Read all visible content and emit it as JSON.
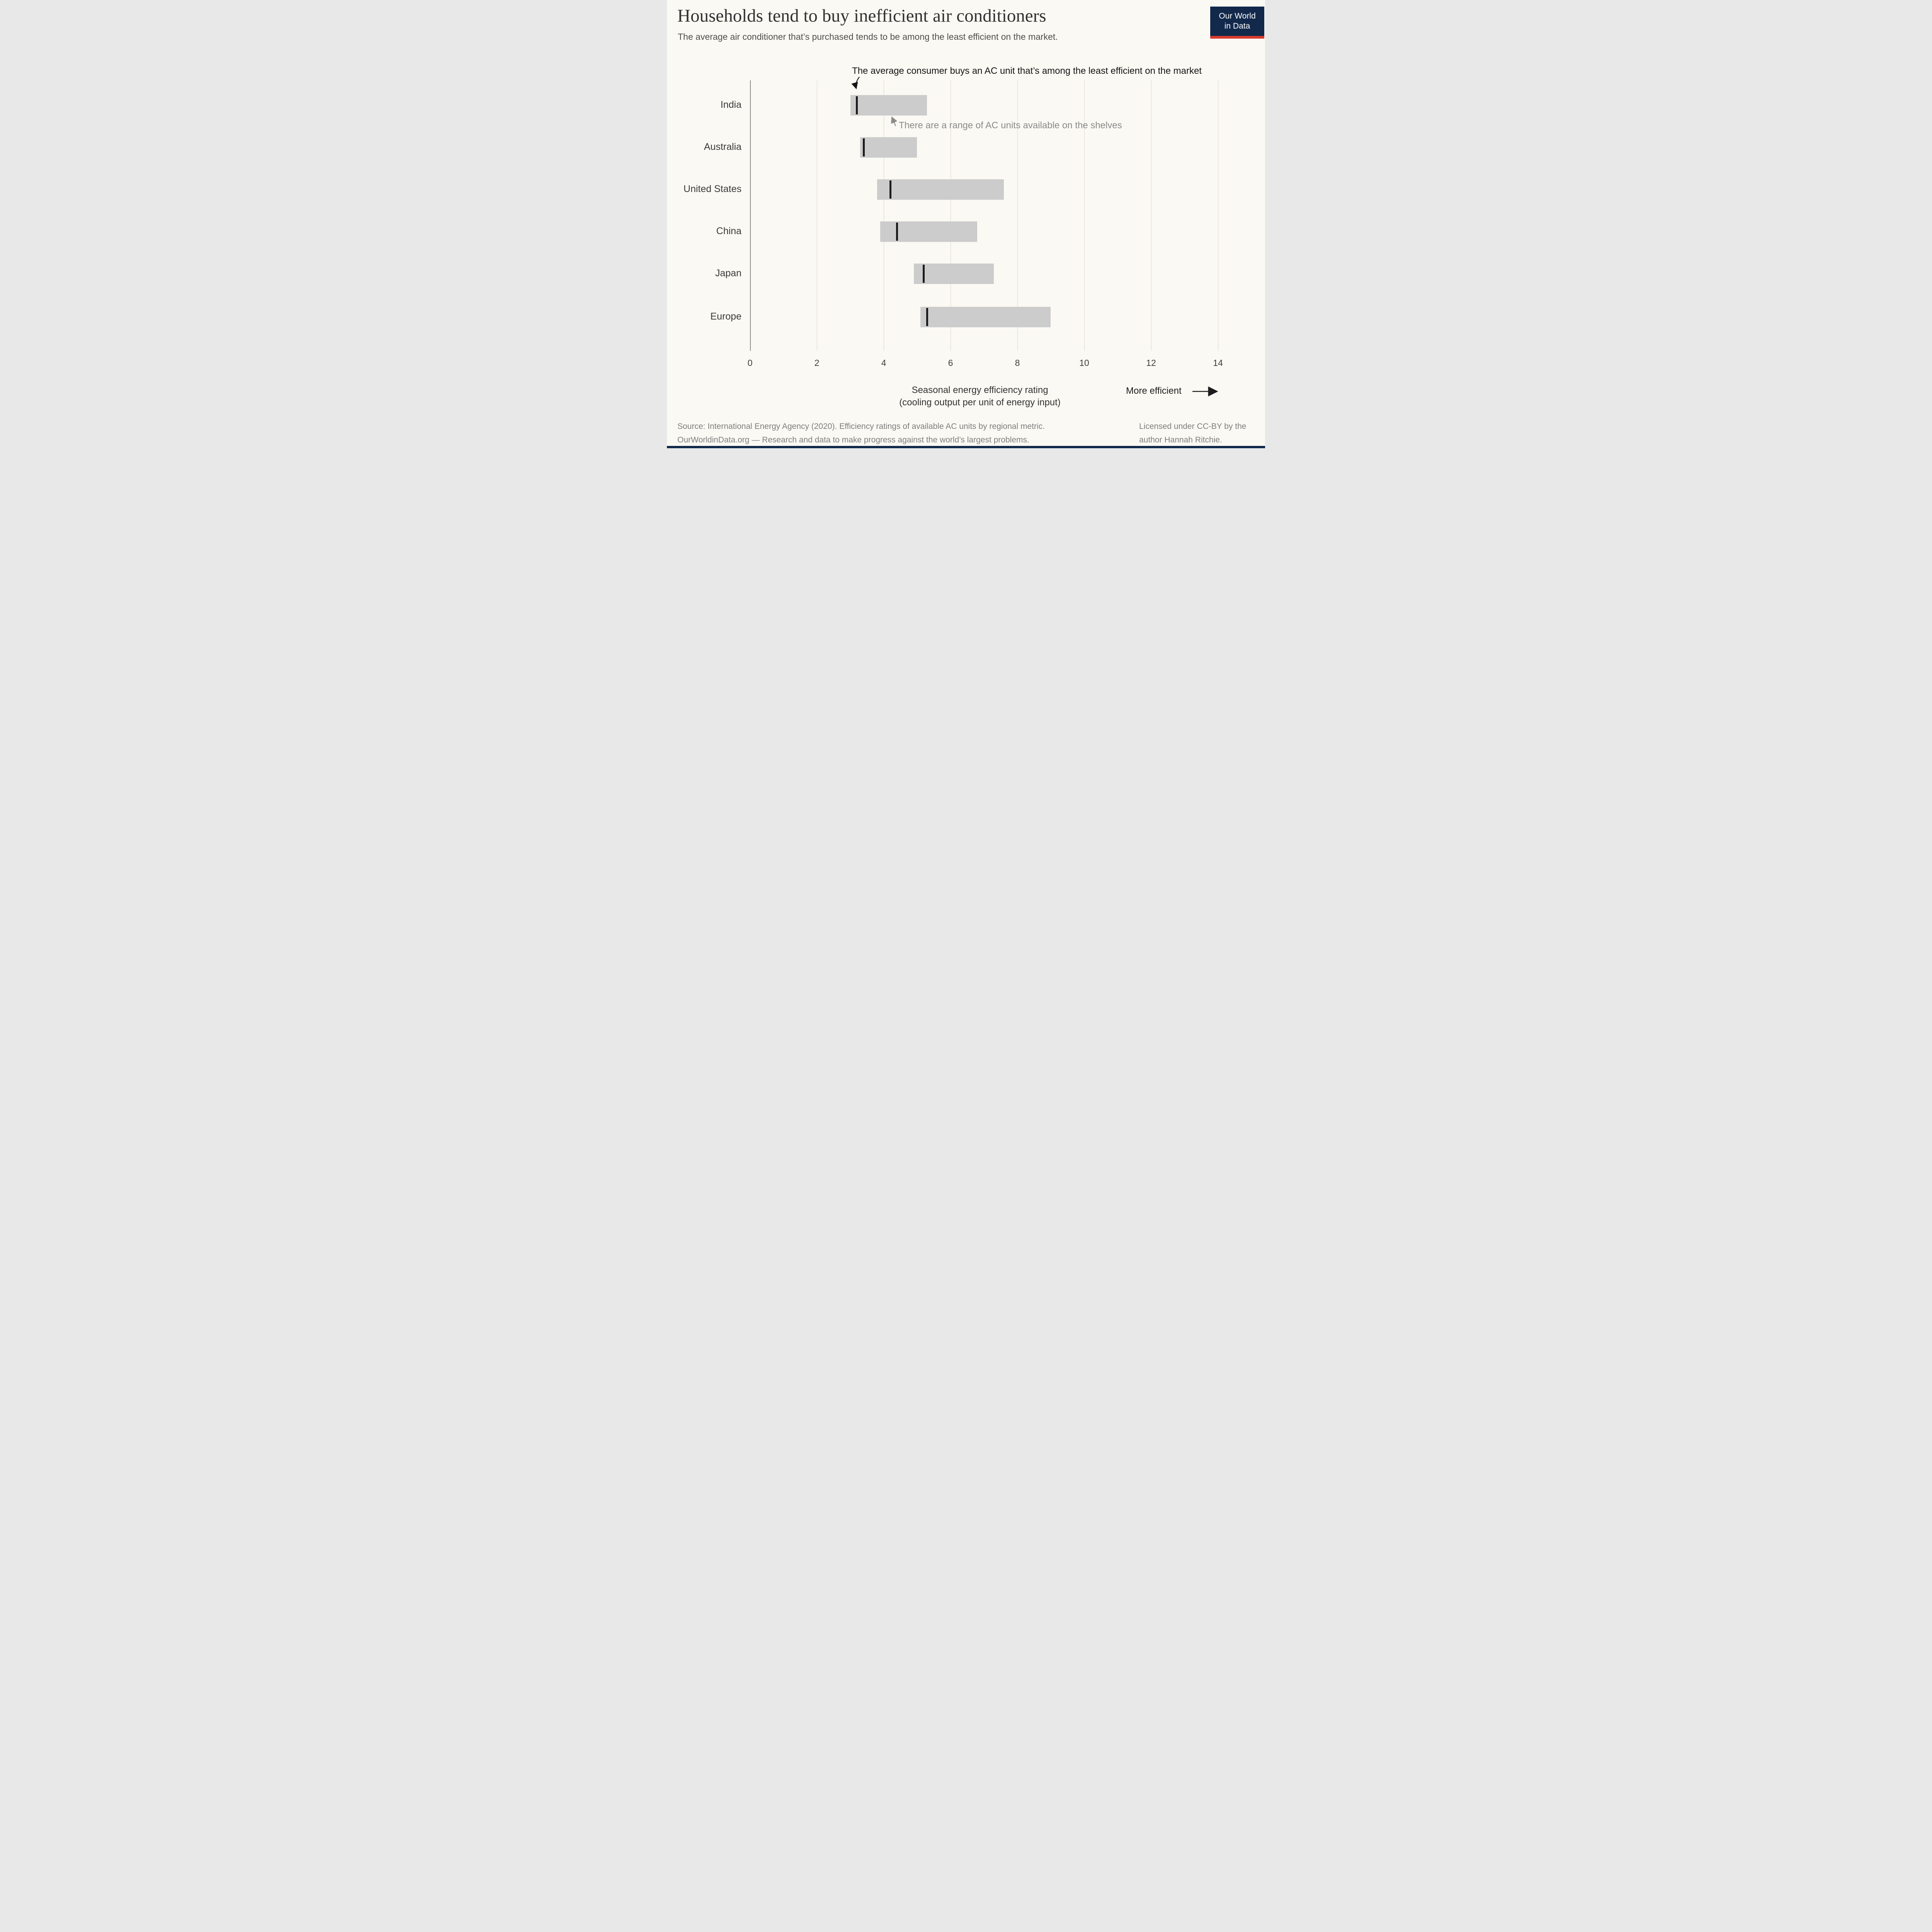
{
  "header": {
    "title": "Households tend to buy inefficient air conditioners",
    "subtitle": "The average air conditioner that’s purchased tends to be among the least efficient on the market.",
    "logo": {
      "line1": "Our World",
      "line2": "in Data",
      "bg_color": "#12294b",
      "accent_color": "#d93a2b"
    }
  },
  "annotations": {
    "top": "The average consumer buys an AC unit that’s among the least efficient on the market",
    "range_note": "There are a range of AC units available on the shelves"
  },
  "chart_data": {
    "type": "bar",
    "variant": "horizontal-range-bars-with-average-marker",
    "categories": [
      "India",
      "Australia",
      "United States",
      "China",
      "Japan",
      "Europe"
    ],
    "rows": [
      {
        "label": "India",
        "min": 3.0,
        "max": 5.3,
        "avg": 3.2
      },
      {
        "label": "Australia",
        "min": 3.3,
        "max": 5.0,
        "avg": 3.4
      },
      {
        "label": "United States",
        "min": 3.8,
        "max": 7.6,
        "avg": 4.2
      },
      {
        "label": "China",
        "min": 3.9,
        "max": 6.8,
        "avg": 4.4
      },
      {
        "label": "Japan",
        "min": 4.9,
        "max": 7.3,
        "avg": 5.2
      },
      {
        "label": "Europe",
        "min": 5.1,
        "max": 9.0,
        "avg": 5.3
      }
    ],
    "series": [
      {
        "name": "Range of available AC units (min)",
        "values": [
          3.0,
          3.3,
          3.8,
          3.9,
          4.9,
          5.1
        ]
      },
      {
        "name": "Range of available AC units (max)",
        "values": [
          5.3,
          5.0,
          7.6,
          6.8,
          7.3,
          9.0
        ]
      },
      {
        "name": "Average purchased unit",
        "values": [
          3.2,
          3.4,
          4.2,
          4.4,
          5.2,
          5.3
        ]
      }
    ],
    "title": "",
    "xlabel": "Seasonal energy efficiency rating",
    "xlabel_line2": "(cooling output per unit of energy input)",
    "ylabel": "",
    "xlim": [
      0,
      14
    ],
    "xticks": [
      0,
      2,
      4,
      6,
      8,
      10,
      12,
      14
    ],
    "grid": true,
    "legend_position": "none",
    "more_efficient_label": "More efficient",
    "bar_color": "#cccccc",
    "marker_color": "#1c1c1c"
  },
  "footer": {
    "source_line": "Source: International Energy Agency (2020). Efficiency ratings of available AC units by regional metric.",
    "org_line": "OurWorldinData.org — Research and data to make progress against the world’s largest problems.",
    "license_line1": "Licensed under CC-BY by the",
    "license_line2": "author Hannah Ritchie."
  }
}
